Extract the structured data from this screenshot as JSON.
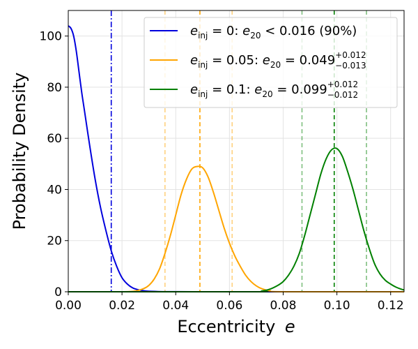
{
  "chart_data": {
    "type": "line",
    "title": "",
    "xlabel": "Eccentricity",
    "xlabel_symbol": "e",
    "ylabel": "Probability Density",
    "xlim": [
      0.0,
      0.125
    ],
    "ylim": [
      0,
      110
    ],
    "xticks": [
      0.0,
      0.02,
      0.04,
      0.06,
      0.08,
      0.1,
      0.12
    ],
    "xtick_labels": [
      "0.00",
      "0.02",
      "0.04",
      "0.06",
      "0.08",
      "0.10",
      "0.12"
    ],
    "yticks": [
      0,
      20,
      40,
      60,
      80,
      100
    ],
    "ytick_labels": [
      "0",
      "20",
      "40",
      "60",
      "80",
      "100"
    ],
    "grid": true,
    "legend_position": "top-right",
    "series": [
      {
        "name": "e_inj = 0",
        "color": "#0000dd",
        "legend": {
          "main": "e",
          "sub": "inj",
          "eq": " = 0: ",
          "main2": "e",
          "sub2": "20",
          "rest": " < 0.016 (90%)"
        },
        "x": [
          0.0,
          0.001,
          0.002,
          0.003,
          0.004,
          0.005,
          0.006,
          0.008,
          0.01,
          0.012,
          0.014,
          0.016,
          0.018,
          0.02,
          0.022,
          0.024,
          0.026,
          0.028,
          0.03,
          0.035,
          0.04,
          0.05,
          0.06,
          0.08,
          0.1,
          0.125
        ],
        "y": [
          104,
          103,
          100,
          94,
          86,
          78,
          71,
          57,
          44,
          33,
          24,
          16,
          10,
          5.5,
          3,
          1.5,
          0.8,
          0.4,
          0.2,
          0.05,
          0.02,
          0,
          0,
          0,
          0,
          0
        ],
        "vlines": [
          {
            "x": 0.016,
            "style": "dashdot",
            "alpha": 1
          }
        ]
      },
      {
        "name": "e_inj = 0.05",
        "color": "#ffa500",
        "legend": {
          "main": "e",
          "sub": "inj",
          "eq": " = 0.05: ",
          "main2": "e",
          "sub2": "20",
          "rest": " = 0.049",
          "sup": "+0.012",
          "subr": "−0.013"
        },
        "x": [
          0.0,
          0.02,
          0.025,
          0.028,
          0.03,
          0.032,
          0.034,
          0.036,
          0.038,
          0.04,
          0.042,
          0.044,
          0.046,
          0.048,
          0.05,
          0.052,
          0.054,
          0.056,
          0.058,
          0.06,
          0.062,
          0.064,
          0.066,
          0.068,
          0.07,
          0.072,
          0.075,
          0.08,
          0.125
        ],
        "y": [
          0,
          0,
          0.3,
          1.2,
          2.5,
          5,
          9,
          15,
          22,
          30,
          38,
          44,
          48,
          49,
          48.5,
          45,
          39,
          32,
          25,
          19,
          14,
          10,
          6.5,
          4,
          2.3,
          1.2,
          0.4,
          0,
          0
        ],
        "vlines": [
          {
            "x": 0.036,
            "style": "dashed",
            "alpha": 0.5
          },
          {
            "x": 0.049,
            "style": "dashed",
            "alpha": 1
          },
          {
            "x": 0.061,
            "style": "dashed",
            "alpha": 0.5
          }
        ]
      },
      {
        "name": "e_inj = 0.1",
        "color": "#008000",
        "legend": {
          "main": "e",
          "sub": "inj",
          "eq": " = 0.1: ",
          "main2": "e",
          "sub2": "20",
          "rest": " = 0.099",
          "sup": "+0.012",
          "subr": "−0.012"
        },
        "x": [
          0.0,
          0.068,
          0.072,
          0.075,
          0.078,
          0.08,
          0.082,
          0.084,
          0.086,
          0.088,
          0.09,
          0.092,
          0.094,
          0.096,
          0.098,
          0.1,
          0.102,
          0.104,
          0.106,
          0.108,
          0.11,
          0.112,
          0.114,
          0.116,
          0.118,
          0.12,
          0.122,
          0.124,
          0.125
        ],
        "y": [
          0,
          0,
          0.3,
          1,
          2.5,
          4,
          6.5,
          10,
          15,
          22,
          30,
          38,
          46,
          52,
          55.5,
          56,
          53,
          47,
          40,
          32,
          24,
          17,
          11,
          7,
          4.5,
          3,
          1.8,
          1.0,
          0.7
        ],
        "vlines": [
          {
            "x": 0.087,
            "style": "dashed",
            "alpha": 0.5
          },
          {
            "x": 0.099,
            "style": "dashed",
            "alpha": 1
          },
          {
            "x": 0.111,
            "style": "dashed",
            "alpha": 0.5
          }
        ]
      }
    ]
  }
}
